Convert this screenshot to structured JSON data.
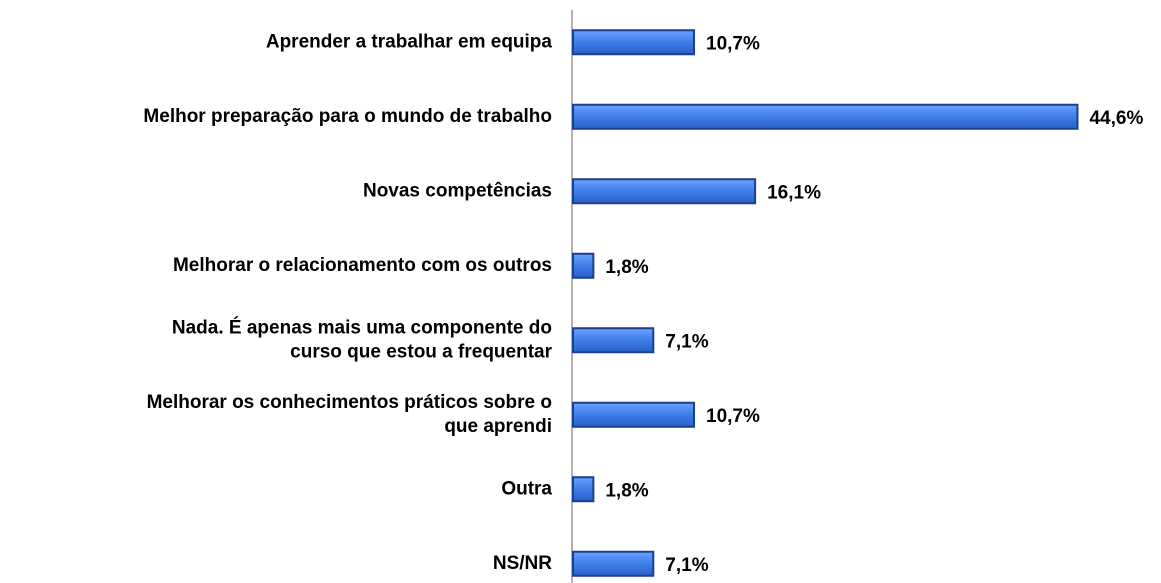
{
  "chart_data": {
    "type": "hbar",
    "categories": [
      "Aprender a trabalhar em equipa",
      "Melhor preparação para o mundo de trabalho",
      "Novas competências",
      "Melhorar o relacionamento com os outros",
      "Nada. É apenas mais uma componente do\ncurso que estou a frequentar",
      "Melhorar os conhecimentos práticos sobre o\nque aprendi",
      "Outra",
      "NS/NR"
    ],
    "values": [
      10.7,
      44.6,
      16.1,
      1.8,
      7.1,
      10.7,
      1.8,
      7.1
    ],
    "value_labels": [
      "10,7%",
      "44,6%",
      "16,1%",
      "1,8%",
      "7,1%",
      "10,7%",
      "1,8%",
      "7,1%"
    ],
    "color": "#3d7ee8",
    "xlim": [
      0,
      45
    ]
  }
}
